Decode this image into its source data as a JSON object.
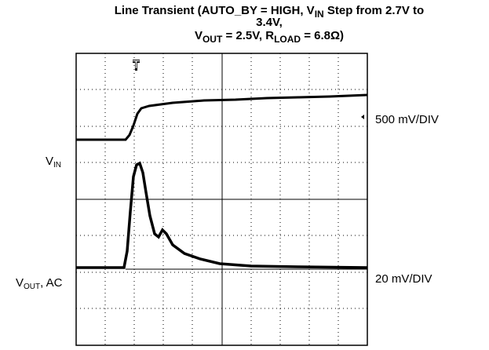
{
  "title": [
    [
      "Line Transient (AUTO_BY = HIGH, V",
      "IN",
      " Step from 2.7V to"
    ],
    [
      "3.4V,"
    ],
    [
      "V",
      "OUT",
      " = 2.5V, R",
      "LOAD",
      " = 6.8Ω)"
    ]
  ],
  "channels": [
    {
      "name": [
        "V",
        "IN"
      ],
      "scale": "500 mV/DIV"
    },
    {
      "name": [
        "V",
        "OUT",
        ", AC"
      ],
      "scale": "20 mV/DIV"
    }
  ],
  "trigger": "T"
}
